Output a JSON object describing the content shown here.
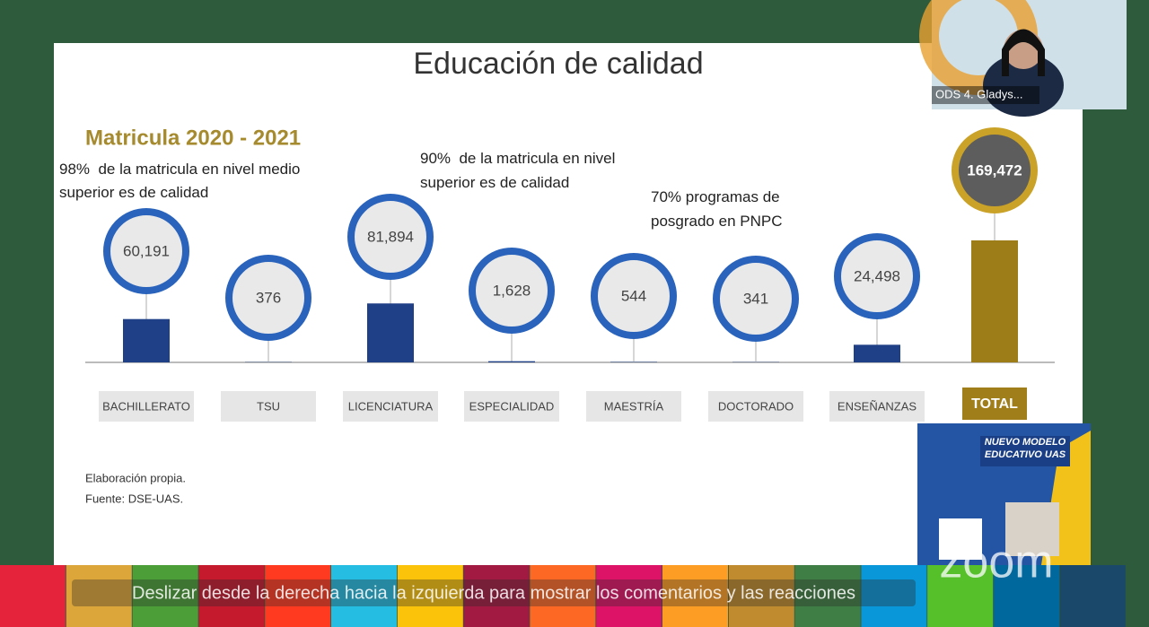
{
  "chart_data": {
    "type": "bar",
    "title": "Educación de calidad",
    "subtitle": "Matricula 2020 - 2021",
    "annotations": [
      "98%  de la matricula en nivel medio superior es de calidad",
      "90%  de la matricula en nivel superior es de calidad",
      "70% programas de posgrado en PNPC"
    ],
    "categories": [
      "BACHILLERATO",
      "TSU",
      "LICENCIATURA",
      "ESPECIALIDAD",
      "MAESTRÍA",
      "DOCTORADO",
      "ENSEÑANZAS",
      "TOTAL"
    ],
    "values": [
      60191,
      376,
      81894,
      1628,
      544,
      341,
      24498,
      169472
    ],
    "value_labels": [
      "60,191",
      "376",
      "81,894",
      "1,628",
      "544",
      "341",
      "24,498",
      "169,472"
    ],
    "colors": [
      "#1f3f86",
      "#1f3f86",
      "#1f3f86",
      "#1f3f86",
      "#1f3f86",
      "#1f3f86",
      "#1f3f86",
      "#9c7d17"
    ],
    "notes": [
      "Elaboración propia.",
      "Fuente: DSE-UAS."
    ]
  },
  "video": {
    "participant": "ODS 4. Gladys..."
  },
  "poster": {
    "title": "NUEVO MODELO EDUCATIVO UAS"
  },
  "overlay": {
    "hint": "Deslizar desde la derecha hacia la izquierda para mostrar los comentarios y las reacciones",
    "watermark": "zoom"
  }
}
